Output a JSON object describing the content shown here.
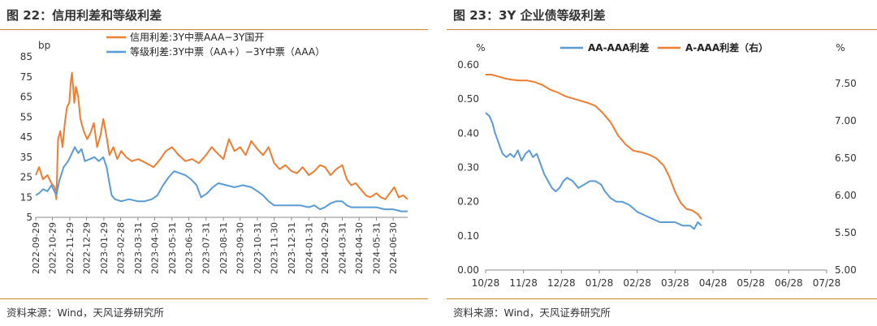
{
  "left": {
    "title": "图 22：信用利差和等级利差",
    "source": "资料来源：Wind，天风证券研究所",
    "chart_data": {
      "type": "line",
      "title": "图 22：信用利差和等级利差",
      "ylabel": "bp",
      "ylim": [
        5,
        85
      ],
      "yticks": [
        5,
        15,
        25,
        35,
        45,
        55,
        65,
        75,
        85
      ],
      "xticks": [
        "2022-09-29",
        "2022-10-29",
        "2022-11-29",
        "2022-12-29",
        "2023-01-29",
        "2023-02-28",
        "2023-03-31",
        "2023-04-30",
        "2023-05-31",
        "2023-06-30",
        "2023-07-31",
        "2023-08-31",
        "2023-09-30",
        "2023-10-31",
        "2023-11-30",
        "2023-12-31",
        "2024-01-31",
        "2024-02-29",
        "2024-03-31",
        "2024-04-30",
        "2024-05-31",
        "2024-06-30"
      ],
      "xlim": [
        "2022-09-29",
        "2024-07-26"
      ],
      "legend_position": "top",
      "grid": false,
      "series": [
        {
          "name": "信用利差:3Y中票AAA−3Y国开",
          "color": "#ed7d31",
          "points": [
            [
              "2022-09-29",
              26
            ],
            [
              "2022-10-05",
              30
            ],
            [
              "2022-10-12",
              24
            ],
            [
              "2022-10-20",
              26
            ],
            [
              "2022-10-27",
              22
            ],
            [
              "2022-11-02",
              20
            ],
            [
              "2022-11-05",
              14
            ],
            [
              "2022-11-08",
              44
            ],
            [
              "2022-11-12",
              48
            ],
            [
              "2022-11-16",
              40
            ],
            [
              "2022-11-20",
              52
            ],
            [
              "2022-11-24",
              60
            ],
            [
              "2022-11-28",
              62
            ],
            [
              "2022-12-01",
              73
            ],
            [
              "2022-12-03",
              77
            ],
            [
              "2022-12-07",
              62
            ],
            [
              "2022-12-10",
              70
            ],
            [
              "2022-12-14",
              65
            ],
            [
              "2022-12-18",
              54
            ],
            [
              "2022-12-24",
              48
            ],
            [
              "2022-12-30",
              44
            ],
            [
              "2023-01-05",
              47
            ],
            [
              "2023-01-11",
              52
            ],
            [
              "2023-01-17",
              40
            ],
            [
              "2023-01-23",
              46
            ],
            [
              "2023-01-28",
              54
            ],
            [
              "2023-02-03",
              45
            ],
            [
              "2023-02-08",
              36
            ],
            [
              "2023-02-15",
              40
            ],
            [
              "2023-02-22",
              34
            ],
            [
              "2023-03-01",
              38
            ],
            [
              "2023-03-10",
              35
            ],
            [
              "2023-03-20",
              33
            ],
            [
              "2023-04-01",
              34
            ],
            [
              "2023-04-15",
              32
            ],
            [
              "2023-04-28",
              30
            ],
            [
              "2023-05-10",
              34
            ],
            [
              "2023-05-20",
              38
            ],
            [
              "2023-05-31",
              40
            ],
            [
              "2023-06-12",
              36
            ],
            [
              "2023-06-24",
              33
            ],
            [
              "2023-07-06",
              34
            ],
            [
              "2023-07-18",
              32
            ],
            [
              "2023-07-31",
              36
            ],
            [
              "2023-08-10",
              40
            ],
            [
              "2023-08-20",
              37
            ],
            [
              "2023-08-31",
              34
            ],
            [
              "2023-09-10",
              44
            ],
            [
              "2023-09-20",
              38
            ],
            [
              "2023-09-30",
              40
            ],
            [
              "2023-10-10",
              36
            ],
            [
              "2023-10-20",
              43
            ],
            [
              "2023-10-31",
              39
            ],
            [
              "2023-11-10",
              36
            ],
            [
              "2023-11-20",
              40
            ],
            [
              "2023-11-30",
              32
            ],
            [
              "2023-12-10",
              29
            ],
            [
              "2023-12-20",
              31
            ],
            [
              "2023-12-31",
              28
            ],
            [
              "2024-01-10",
              27
            ],
            [
              "2024-01-20",
              30
            ],
            [
              "2024-01-31",
              26
            ],
            [
              "2024-02-10",
              28
            ],
            [
              "2024-02-20",
              31
            ],
            [
              "2024-02-29",
              30
            ],
            [
              "2024-03-10",
              26
            ],
            [
              "2024-03-20",
              29
            ],
            [
              "2024-03-31",
              31
            ],
            [
              "2024-04-08",
              24
            ],
            [
              "2024-04-16",
              21
            ],
            [
              "2024-04-24",
              22
            ],
            [
              "2024-05-03",
              19
            ],
            [
              "2024-05-12",
              16
            ],
            [
              "2024-05-20",
              15
            ],
            [
              "2024-05-31",
              17
            ],
            [
              "2024-06-08",
              15
            ],
            [
              "2024-06-16",
              14
            ],
            [
              "2024-06-24",
              17
            ],
            [
              "2024-07-02",
              20
            ],
            [
              "2024-07-10",
              15
            ],
            [
              "2024-07-18",
              16
            ],
            [
              "2024-07-26",
              14
            ]
          ]
        },
        {
          "name": "等级利差:3Y中票（AA+）−3Y中票（AAA）",
          "color": "#5b9bd5",
          "points": [
            [
              "2022-09-29",
              16
            ],
            [
              "2022-10-05",
              17
            ],
            [
              "2022-10-12",
              19
            ],
            [
              "2022-10-20",
              18
            ],
            [
              "2022-10-27",
              21
            ],
            [
              "2022-11-05",
              16
            ],
            [
              "2022-11-10",
              23
            ],
            [
              "2022-11-18",
              30
            ],
            [
              "2022-11-26",
              33
            ],
            [
              "2022-12-03",
              37
            ],
            [
              "2022-12-08",
              40
            ],
            [
              "2022-12-14",
              37
            ],
            [
              "2022-12-20",
              39
            ],
            [
              "2022-12-26",
              33
            ],
            [
              "2023-01-04",
              34
            ],
            [
              "2023-01-12",
              35
            ],
            [
              "2023-01-20",
              33
            ],
            [
              "2023-01-28",
              35
            ],
            [
              "2023-02-03",
              30
            ],
            [
              "2023-02-08",
              22
            ],
            [
              "2023-02-12",
              16
            ],
            [
              "2023-02-18",
              14
            ],
            [
              "2023-03-01",
              13
            ],
            [
              "2023-03-15",
              14
            ],
            [
              "2023-03-31",
              13
            ],
            [
              "2023-04-12",
              13
            ],
            [
              "2023-04-25",
              14
            ],
            [
              "2023-05-05",
              16
            ],
            [
              "2023-05-15",
              21
            ],
            [
              "2023-05-25",
              25
            ],
            [
              "2023-06-04",
              28
            ],
            [
              "2023-06-14",
              27
            ],
            [
              "2023-06-24",
              26
            ],
            [
              "2023-07-04",
              24
            ],
            [
              "2023-07-14",
              21
            ],
            [
              "2023-07-22",
              15
            ],
            [
              "2023-08-02",
              17
            ],
            [
              "2023-08-12",
              20
            ],
            [
              "2023-08-22",
              22
            ],
            [
              "2023-09-05",
              21
            ],
            [
              "2023-09-20",
              20
            ],
            [
              "2023-10-05",
              21
            ],
            [
              "2023-10-20",
              20
            ],
            [
              "2023-10-31",
              18
            ],
            [
              "2023-11-10",
              16
            ],
            [
              "2023-11-20",
              13
            ],
            [
              "2023-11-30",
              11
            ],
            [
              "2023-12-15",
              11
            ],
            [
              "2023-12-31",
              11
            ],
            [
              "2024-01-15",
              11
            ],
            [
              "2024-01-31",
              10
            ],
            [
              "2024-02-10",
              11
            ],
            [
              "2024-02-20",
              9
            ],
            [
              "2024-02-29",
              10
            ],
            [
              "2024-03-10",
              12
            ],
            [
              "2024-03-20",
              13
            ],
            [
              "2024-03-31",
              13
            ],
            [
              "2024-04-08",
              11
            ],
            [
              "2024-04-16",
              10
            ],
            [
              "2024-04-30",
              10
            ],
            [
              "2024-05-15",
              10
            ],
            [
              "2024-05-31",
              10
            ],
            [
              "2024-06-15",
              9
            ],
            [
              "2024-06-30",
              9
            ],
            [
              "2024-07-15",
              8
            ],
            [
              "2024-07-26",
              8
            ]
          ]
        }
      ]
    }
  },
  "right": {
    "title": "图 23：3Y 企业债等级利差",
    "source": "资料来源：Wind，天风证券研究所",
    "chart_data": {
      "type": "line",
      "title": "图 23：3Y 企业债等级利差",
      "ylabel_left": "%",
      "ylabel_right": "%",
      "ylim_left": [
        0,
        0.6
      ],
      "yticks_left": [
        "0.00",
        "0.10",
        "0.20",
        "0.30",
        "0.40",
        "0.50",
        "0.60"
      ],
      "ylim_right": [
        5.0,
        7.75
      ],
      "yticks_right": [
        "5.00",
        "5.50",
        "6.00",
        "6.50",
        "7.00",
        "7.50"
      ],
      "xticks": [
        "10/28",
        "11/28",
        "12/28",
        "01/28",
        "02/28",
        "03/28",
        "04/28",
        "05/28",
        "06/28",
        "07/28"
      ],
      "legend_position": "top",
      "grid": false,
      "series": [
        {
          "name": "AA-AAA利差",
          "axis": "left",
          "color": "#5b9bd5",
          "points": [
            [
              0.0,
              0.46
            ],
            [
              0.1,
              0.45
            ],
            [
              0.18,
              0.43
            ],
            [
              0.25,
              0.4
            ],
            [
              0.32,
              0.38
            ],
            [
              0.38,
              0.36
            ],
            [
              0.45,
              0.34
            ],
            [
              0.55,
              0.33
            ],
            [
              0.65,
              0.34
            ],
            [
              0.75,
              0.33
            ],
            [
              0.85,
              0.35
            ],
            [
              0.95,
              0.32
            ],
            [
              1.05,
              0.34
            ],
            [
              1.15,
              0.35
            ],
            [
              1.25,
              0.33
            ],
            [
              1.35,
              0.34
            ],
            [
              1.45,
              0.31
            ],
            [
              1.55,
              0.28
            ],
            [
              1.65,
              0.26
            ],
            [
              1.75,
              0.24
            ],
            [
              1.85,
              0.23
            ],
            [
              1.95,
              0.24
            ],
            [
              2.05,
              0.26
            ],
            [
              2.15,
              0.27
            ],
            [
              2.3,
              0.26
            ],
            [
              2.45,
              0.24
            ],
            [
              2.6,
              0.25
            ],
            [
              2.75,
              0.26
            ],
            [
              2.9,
              0.26
            ],
            [
              3.05,
              0.25
            ],
            [
              3.15,
              0.23
            ],
            [
              3.3,
              0.21
            ],
            [
              3.45,
              0.2
            ],
            [
              3.6,
              0.2
            ],
            [
              3.8,
              0.19
            ],
            [
              4.0,
              0.17
            ],
            [
              4.2,
              0.16
            ],
            [
              4.4,
              0.15
            ],
            [
              4.6,
              0.14
            ],
            [
              4.8,
              0.14
            ],
            [
              5.0,
              0.14
            ],
            [
              5.2,
              0.13
            ],
            [
              5.4,
              0.13
            ],
            [
              5.5,
              0.12
            ],
            [
              5.6,
              0.14
            ],
            [
              5.7,
              0.13
            ]
          ]
        },
        {
          "name": "A-AAA利差（右）",
          "axis": "right",
          "color": "#ed7d31",
          "points": [
            [
              0.0,
              7.62
            ],
            [
              0.15,
              7.62
            ],
            [
              0.3,
              7.6
            ],
            [
              0.5,
              7.57
            ],
            [
              0.7,
              7.55
            ],
            [
              0.9,
              7.54
            ],
            [
              1.1,
              7.54
            ],
            [
              1.3,
              7.52
            ],
            [
              1.5,
              7.48
            ],
            [
              1.7,
              7.42
            ],
            [
              1.9,
              7.38
            ],
            [
              2.1,
              7.33
            ],
            [
              2.3,
              7.3
            ],
            [
              2.5,
              7.27
            ],
            [
              2.7,
              7.24
            ],
            [
              2.9,
              7.2
            ],
            [
              3.1,
              7.1
            ],
            [
              3.3,
              6.98
            ],
            [
              3.5,
              6.8
            ],
            [
              3.7,
              6.68
            ],
            [
              3.9,
              6.6
            ],
            [
              4.1,
              6.58
            ],
            [
              4.3,
              6.55
            ],
            [
              4.5,
              6.5
            ],
            [
              4.7,
              6.4
            ],
            [
              4.85,
              6.25
            ],
            [
              5.0,
              6.05
            ],
            [
              5.15,
              5.9
            ],
            [
              5.3,
              5.82
            ],
            [
              5.45,
              5.8
            ],
            [
              5.6,
              5.75
            ],
            [
              5.7,
              5.68
            ]
          ]
        }
      ]
    }
  }
}
